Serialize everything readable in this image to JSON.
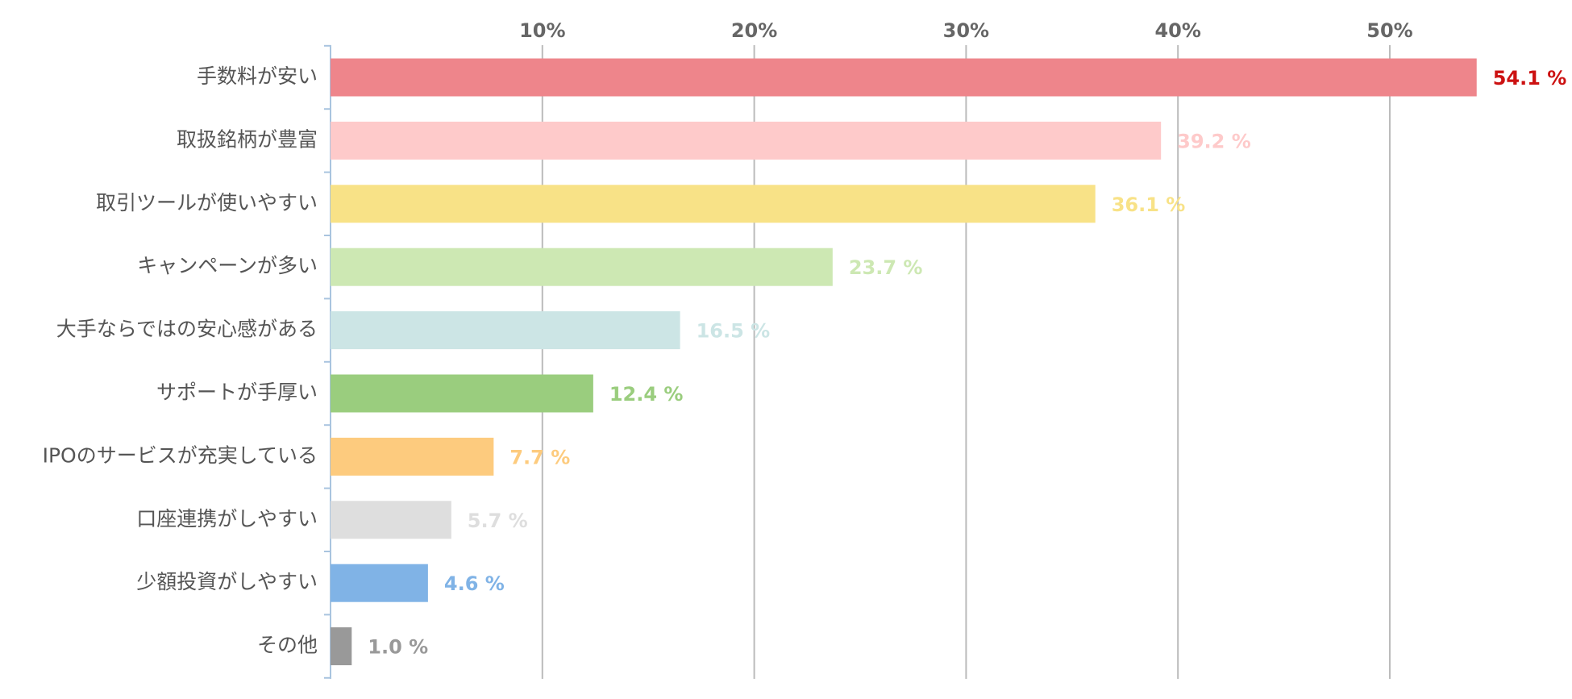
{
  "chart_data": {
    "type": "bar",
    "orientation": "horizontal",
    "categories": [
      "手数料が安い",
      "取扱銘柄が豊富",
      "取引ツールが使いやすい",
      "キャンペーンが多い",
      "大手ならではの安心感がある",
      "サポートが手厚い",
      "IPOのサービスが充実している",
      "口座連携がしやすい",
      "少額投資がしやすい",
      "その他"
    ],
    "values": [
      54.1,
      39.2,
      36.1,
      23.7,
      16.5,
      12.4,
      7.7,
      5.7,
      4.6,
      1.0
    ],
    "value_labels": [
      "54.1 %",
      "39.2 %",
      "36.1 %",
      "23.7 %",
      "16.5 %",
      "12.4 %",
      "7.7 %",
      "5.7 %",
      "4.6 %",
      "1.0 %"
    ],
    "colors": [
      "#ee858b",
      "#fecaca",
      "#f8e287",
      "#cde8b3",
      "#cce5e5",
      "#9acd7e",
      "#fdcb7e",
      "#dedede",
      "#80b3e6",
      "#999999"
    ],
    "value_label_colors": [
      "#cc1111",
      "#fecaca",
      "#f8e287",
      "#cde8b3",
      "#cce5e5",
      "#9acd7e",
      "#fdcb7e",
      "#dedede",
      "#80b3e6",
      "#999999"
    ],
    "xlim": [
      0,
      58.6
    ],
    "xticks": [
      {
        "value": 10,
        "label": "10%"
      },
      {
        "value": 20,
        "label": "20%"
      },
      {
        "value": 30,
        "label": "30%"
      },
      {
        "value": 40,
        "label": "40%"
      },
      {
        "value": 50,
        "label": "50%"
      }
    ],
    "grid": true
  }
}
